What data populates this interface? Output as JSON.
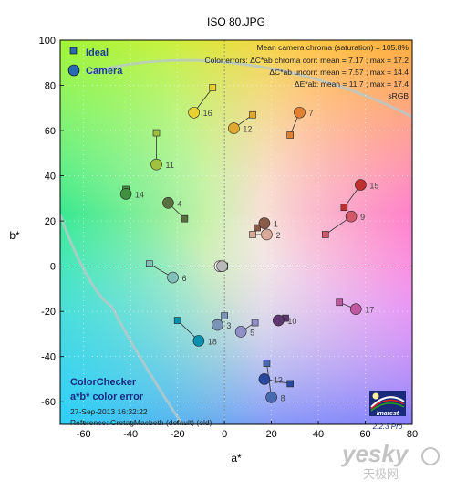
{
  "chart_data": {
    "type": "scatter",
    "title": "ISO 80.JPG",
    "xlabel": "a*",
    "ylabel": "b*",
    "xlim": [
      -70,
      80
    ],
    "ylim": [
      -70,
      100
    ],
    "xticks": [
      -60,
      -40,
      -20,
      0,
      20,
      40,
      60,
      80
    ],
    "yticks": [
      -60,
      -40,
      -20,
      0,
      20,
      40,
      60,
      80,
      100
    ],
    "grid": true,
    "legend_position": "top-left",
    "legend": [
      {
        "name": "Ideal",
        "marker": "square"
      },
      {
        "name": "Camera",
        "marker": "circle"
      }
    ],
    "stats": [
      "Mean camera chroma (saturation) = 105.8%",
      "Color errors:  ΔC*ab chroma corr:  mean = 7.17 ;  max = 17.2",
      "ΔC*ab uncorr:  mean = 7.57 ;  max = 14.4",
      "ΔE*ab:  mean = 11.7 ;  max = 17.4",
      "sRGB"
    ],
    "info_title": [
      "ColorChecker",
      "a*b* color error"
    ],
    "info_lines": [
      "27-Sep-2013 16:32:22",
      "Reference: GretagMacbeth (default) (old)"
    ],
    "logo_text": "Imatest",
    "version": "2.2.3   Pro",
    "watermark": "yesky",
    "watermark_cn": "天极网",
    "patches": [
      {
        "id": "1",
        "ideal": [
          14,
          17
        ],
        "camera": [
          17,
          19
        ],
        "color": "#8a5a48"
      },
      {
        "id": "2",
        "ideal": [
          12,
          14
        ],
        "camera": [
          18,
          14
        ],
        "color": "#d8a898"
      },
      {
        "id": "3",
        "ideal": [
          0,
          -22
        ],
        "camera": [
          -3,
          -26
        ],
        "color": "#7a94b8"
      },
      {
        "id": "4",
        "ideal": [
          -17,
          21
        ],
        "camera": [
          -24,
          28
        ],
        "color": "#5a7040"
      },
      {
        "id": "5",
        "ideal": [
          13,
          -25
        ],
        "camera": [
          7,
          -29
        ],
        "color": "#9090c8"
      },
      {
        "id": "6",
        "ideal": [
          -32,
          1
        ],
        "camera": [
          -22,
          -5
        ],
        "color": "#80c0b8"
      },
      {
        "id": "7",
        "ideal": [
          28,
          58
        ],
        "camera": [
          32,
          68
        ],
        "color": "#e08030"
      },
      {
        "id": "8",
        "ideal": [
          18,
          -43
        ],
        "camera": [
          20,
          -58
        ],
        "color": "#4868b0"
      },
      {
        "id": "9",
        "ideal": [
          43,
          14
        ],
        "camera": [
          54,
          22
        ],
        "color": "#d05868"
      },
      {
        "id": "10",
        "ideal": [
          26,
          -23
        ],
        "camera": [
          23,
          -24
        ],
        "color": "#603870"
      },
      {
        "id": "11",
        "ideal": [
          -29,
          59
        ],
        "camera": [
          -29,
          45
        ],
        "color": "#a0c040"
      },
      {
        "id": "12",
        "ideal": [
          12,
          67
        ],
        "camera": [
          4,
          61
        ],
        "color": "#e0a830"
      },
      {
        "id": "13",
        "ideal": [
          28,
          -52
        ],
        "camera": [
          17,
          -50
        ],
        "color": "#2848a0"
      },
      {
        "id": "14",
        "ideal": [
          -42,
          34
        ],
        "camera": [
          -42,
          32
        ],
        "color": "#409040"
      },
      {
        "id": "15",
        "ideal": [
          51,
          26
        ],
        "camera": [
          58,
          36
        ],
        "color": "#c03030"
      },
      {
        "id": "16",
        "ideal": [
          -5,
          79
        ],
        "camera": [
          -13,
          68
        ],
        "color": "#e8d030"
      },
      {
        "id": "17",
        "ideal": [
          49,
          -16
        ],
        "camera": [
          56,
          -19
        ],
        "color": "#c058a0"
      },
      {
        "id": "18",
        "ideal": [
          -20,
          -24
        ],
        "camera": [
          -11,
          -33
        ],
        "color": "#0890b0"
      },
      {
        "id": "",
        "ideal": [
          0,
          0
        ],
        "camera": [
          -2,
          0
        ],
        "color": "#f4f4f4"
      },
      {
        "id": "",
        "ideal": [
          0,
          0
        ],
        "camera": [
          -1,
          0
        ],
        "color": "#b8b8b8"
      }
    ]
  }
}
